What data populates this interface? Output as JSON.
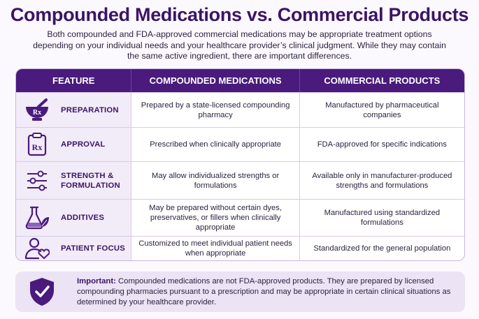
{
  "title": "Compounded Medications vs. Commercial Products",
  "intro": "Both compounded and FDA-approved commercial medications may be appropriate treatment options depending on your individual needs and your healthcare provider’s clinical judgment. While they may contain the same active ingredient, there are important differences.",
  "table": {
    "headers": [
      "FEATURE",
      "COMPOUNDED MEDICATIONS",
      "COMMERCIAL PRODUCTS"
    ],
    "rows": [
      {
        "icon": "mortar-pestle-rx-icon",
        "feature": "PREPARATION",
        "compounded": "Prepared by a state-licensed compounding pharmacy",
        "commercial": "Manufactured by pharmaceutical companies"
      },
      {
        "icon": "clipboard-rx-icon",
        "feature": "APPROVAL",
        "compounded": "Prescribed when clinically appropriate",
        "commercial": "FDA-approved for specific indications"
      },
      {
        "icon": "sliders-icon",
        "feature": "STRENGTH & FORMULATION",
        "compounded": "May allow individualized strengths or formulations",
        "commercial": "Available only in manufacturer-produced strengths and formulations"
      },
      {
        "icon": "flask-leaf-icon",
        "feature": "ADDITIVES",
        "compounded": "May be prepared without certain dyes, preservatives, or fillers when clinically appropriate",
        "commercial": "Manufactured using standardized formulations"
      },
      {
        "icon": "person-heart-icon",
        "feature": "PATIENT FOCUS",
        "compounded": "Customized to meet individual patient needs when appropriate",
        "commercial": "Standardized for the general population"
      }
    ]
  },
  "note": {
    "icon": "shield-check-icon",
    "label": "Important:",
    "text": " Compounded medications are not FDA-approved products. They are prepared by licensed compounding pharmacies pursuant to a prescription and may be appropriate in certain clinical situations as determined by your healthcare provider."
  },
  "colors": {
    "primary": "#4a1a7c",
    "title": "#3b1466",
    "feature_bg": "#f2ebf8",
    "note_bg": "#ece3f5"
  }
}
